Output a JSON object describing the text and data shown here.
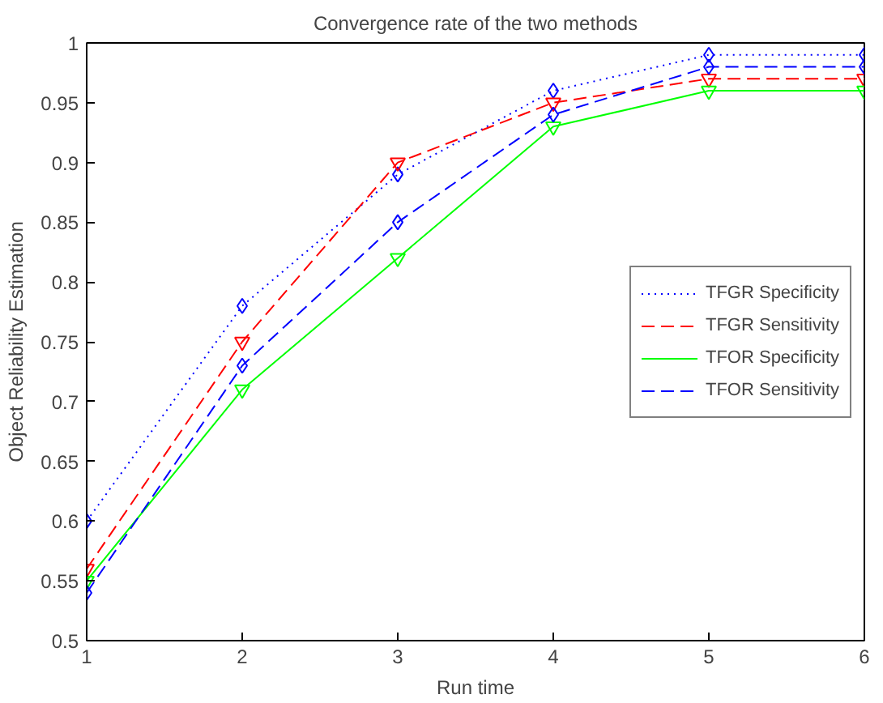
{
  "chart_data": {
    "type": "line",
    "title": "Convergence rate of the two methods",
    "xlabel": "Run time",
    "ylabel": "Object Reliability Estimation",
    "x": [
      1,
      2,
      3,
      4,
      5,
      6
    ],
    "series": [
      {
        "name": "TFGR Specificity",
        "color": "#0000ff",
        "values": [
          0.6,
          0.78,
          0.89,
          0.96,
          0.99,
          0.99
        ],
        "line_style": "dotted",
        "marker": "diamond"
      },
      {
        "name": "TFGR Sensitivity",
        "color": "#ff0000",
        "values": [
          0.56,
          0.75,
          0.9,
          0.95,
          0.97,
          0.97
        ],
        "line_style": "dashed",
        "marker": "triangle"
      },
      {
        "name": "TFOR Specificity",
        "color": "#00ff00",
        "values": [
          0.55,
          0.71,
          0.82,
          0.93,
          0.96,
          0.96
        ],
        "line_style": "solid",
        "marker": "triangle"
      },
      {
        "name": "TFOR Sensitivity",
        "color": "#0000ff",
        "values": [
          0.54,
          0.73,
          0.85,
          0.94,
          0.98,
          0.98
        ],
        "line_style": "dashed",
        "marker": "diamond"
      }
    ],
    "xlim": [
      1,
      6
    ],
    "xticks": [
      1,
      2,
      3,
      4,
      5,
      6
    ],
    "ylim": [
      0.5,
      1
    ],
    "yticks": [
      0.5,
      0.55,
      0.6,
      0.65,
      0.7,
      0.75,
      0.8,
      0.85,
      0.9,
      0.95,
      1
    ],
    "grid": false,
    "legend": "right"
  }
}
